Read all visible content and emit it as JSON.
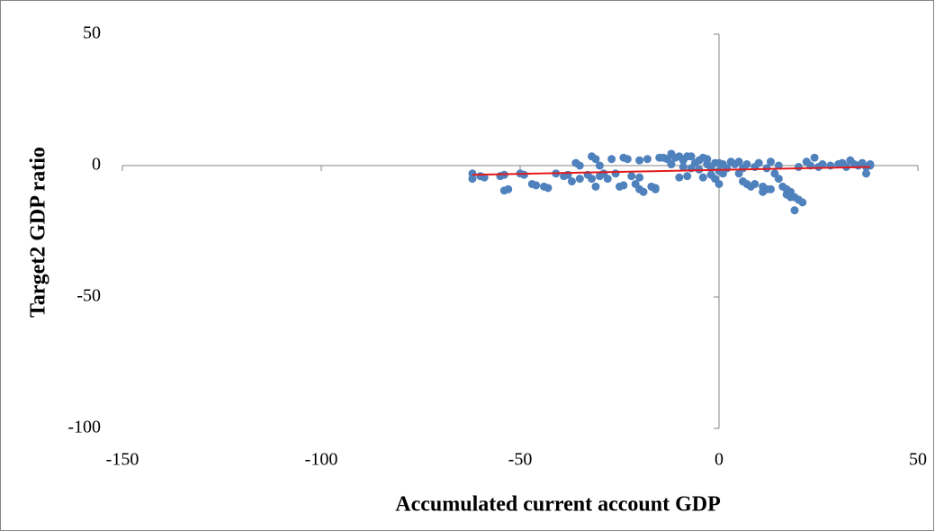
{
  "chart_data": {
    "type": "scatter",
    "xlabel": "Accumulated current account GDP",
    "ylabel": "Target2 GDP ratio",
    "xlim": [
      -150,
      50
    ],
    "xticks": [
      -150,
      -100,
      -50,
      0,
      50
    ],
    "ylim": [
      -100,
      50
    ],
    "yticks": [
      -100,
      -50,
      0,
      50
    ],
    "series": [
      {
        "color": "#4f81bd",
        "x": [
          -62,
          -62,
          -60,
          -59,
          -55,
          -54,
          -54,
          -53,
          -50,
          -49,
          -47,
          -46,
          -44,
          -43,
          -41,
          -39,
          -38,
          -37,
          -36,
          -35,
          -35,
          -33,
          -32,
          -32,
          -31,
          -31,
          -30,
          -30,
          -29,
          -28,
          -27,
          -26,
          -25,
          -24,
          -24,
          -23,
          -22,
          -21,
          -20,
          -20,
          -20,
          -19,
          -18,
          -17,
          -16,
          -16,
          -15,
          -14,
          -13,
          -12,
          -12,
          -11,
          -10,
          -10,
          -9,
          -9,
          -8,
          -8,
          -7,
          -7,
          -6,
          -5,
          -5,
          -4,
          -4,
          -3,
          -3,
          -2,
          -2,
          -1,
          -1,
          0,
          0,
          0,
          1,
          1,
          2,
          3,
          4,
          5,
          5,
          6,
          6,
          7,
          7,
          8,
          9,
          9,
          10,
          11,
          11,
          12,
          12,
          13,
          13,
          14,
          15,
          15,
          16,
          17,
          17,
          18,
          18,
          19,
          19,
          20,
          20,
          21,
          22,
          23,
          24,
          25,
          26,
          28,
          30,
          31,
          32,
          33,
          34,
          35,
          36,
          37,
          37,
          38,
          38
        ],
        "values": [
          -5,
          -3,
          -4,
          -4.5,
          -4,
          -3.5,
          -9.5,
          -9,
          -3,
          -3.5,
          -7,
          -7.5,
          -8,
          -8.5,
          -3,
          -4,
          -3.5,
          -6,
          1,
          -5,
          0,
          -3.5,
          -5,
          3.5,
          -8,
          2.5,
          -4,
          0,
          -3,
          -5,
          2.5,
          -3,
          -8,
          -7.5,
          3,
          2.5,
          -4,
          -7,
          -9,
          -4.5,
          2,
          -10,
          2.5,
          -8,
          -9,
          -8.5,
          3,
          3,
          2.5,
          4.5,
          0.5,
          3,
          -4.5,
          3.5,
          2,
          -0.5,
          3.5,
          -4,
          3.5,
          -1,
          1,
          2,
          -1.5,
          -4.5,
          3,
          2.5,
          0.5,
          -1,
          -3.5,
          -5,
          1,
          -7,
          -2,
          1,
          -3,
          0.5,
          -1,
          1.5,
          0.5,
          1.5,
          -3,
          -1,
          -6,
          0.5,
          -7,
          -8,
          -0.5,
          -7,
          1,
          -8,
          -10,
          -9,
          -1,
          1.5,
          -9,
          -3,
          0,
          -5,
          -8,
          -9,
          -11,
          -10,
          -12,
          -12,
          -17,
          -0.5,
          -13,
          -14,
          1.5,
          0,
          3,
          -0.5,
          0.5,
          0,
          0.5,
          1,
          -0.5,
          2,
          0.5,
          0,
          1,
          -0.5,
          -3,
          0.5,
          0
        ]
      }
    ],
    "trendline": {
      "color": "#e31a1c",
      "x": [
        -62,
        38
      ],
      "values": [
        -3.5,
        -0.5
      ]
    }
  }
}
